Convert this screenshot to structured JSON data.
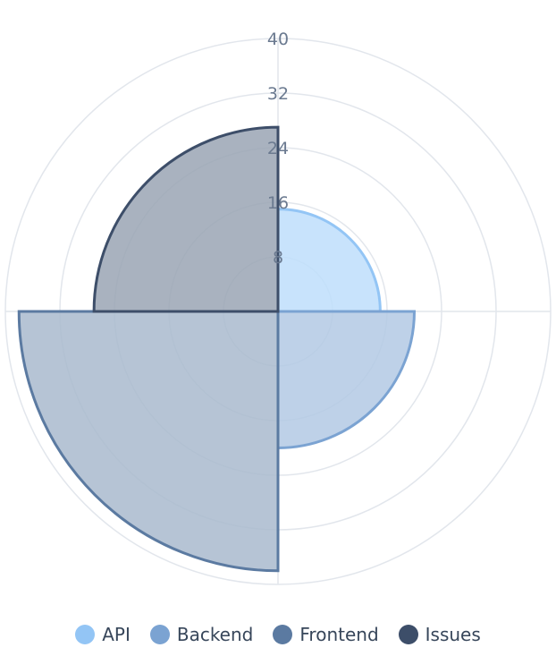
{
  "chart_data": {
    "type": "polarArea",
    "title": "",
    "r_ticks": [
      8,
      16,
      24,
      32,
      40
    ],
    "r_max": 40,
    "r_min": 0,
    "grid": true,
    "legend_position": "bottom",
    "series": [
      {
        "name": "API",
        "value": 15,
        "color": "#93c5f5",
        "fill": "#bedefb"
      },
      {
        "name": "Backend",
        "value": 20,
        "color": "#7ba3d2",
        "fill": "#b3c9e4"
      },
      {
        "name": "Frontend",
        "value": 38,
        "color": "#5b7aa1",
        "fill": "#a9bace"
      },
      {
        "name": "Issues",
        "value": 27,
        "color": "#3d4e69",
        "fill": "#9aa5b4"
      }
    ]
  }
}
